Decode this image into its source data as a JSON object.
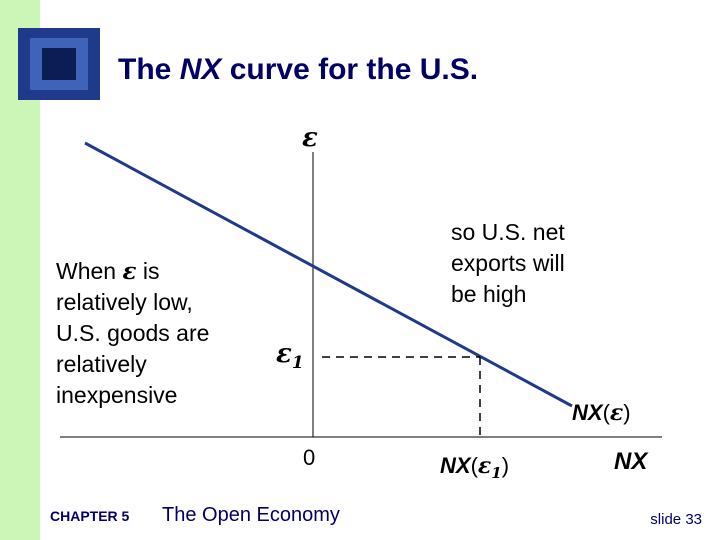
{
  "header": {
    "title_start": "The",
    "title_italic": "NX",
    "title_end": "curve for the U.S."
  },
  "diagram": {
    "y_axis_label": "ε",
    "x_axis_label": "NX",
    "origin_label": "0",
    "curve_label": [
      "NX",
      "(",
      "ε",
      ")"
    ],
    "y_marker": {
      "symbol": "ε",
      "subscript": "1"
    },
    "x_marker": [
      "NX",
      "(",
      "ε",
      "1",
      ")"
    ],
    "left_note": {
      "line1_start": "When",
      "line1_symbol": "ε",
      "line1_end": "is",
      "lines": [
        "relatively low,",
        "U.S. goods are",
        "relatively",
        "inexpensive"
      ]
    },
    "right_note": [
      "so U.S. net",
      "exports will",
      "be high"
    ]
  },
  "footer": {
    "chapter": "CHAPTER 5",
    "chapter_title": "The Open Economy",
    "slide": "slide 33"
  }
}
